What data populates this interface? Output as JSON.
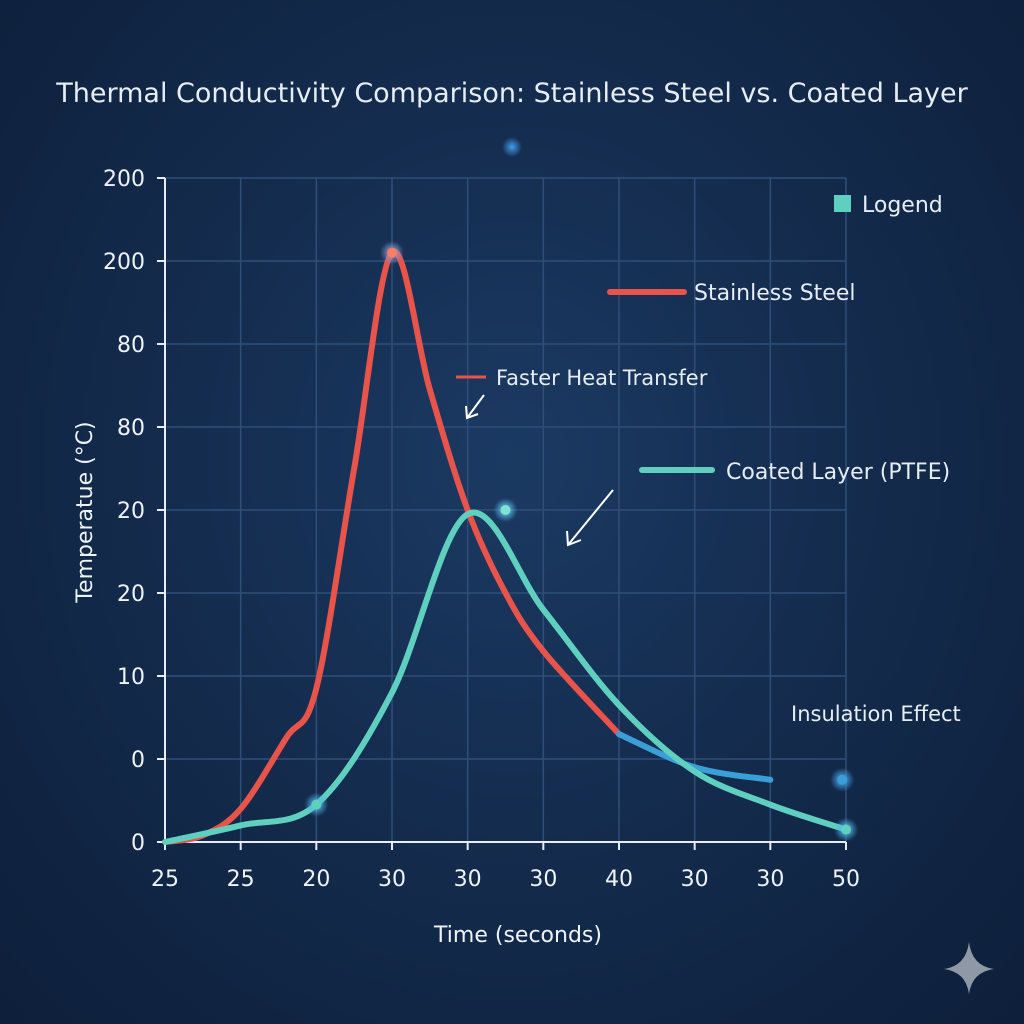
{
  "chart_data": {
    "type": "line",
    "title": "Thermal Conductivity Comparison: Stainless Steel vs. Coated Layer",
    "xlabel": "Time (seconds)",
    "ylabel": "Temperatue (°C)",
    "x_tick_labels": [
      "25",
      "25",
      "20",
      "30",
      "30",
      "30",
      "40",
      "30",
      "30",
      "50"
    ],
    "y_tick_labels": [
      "0",
      "0",
      "10",
      "20",
      "20",
      "80",
      "80",
      "200",
      "200"
    ],
    "grid": true,
    "legend": {
      "title": "Logend",
      "position": "top-right",
      "entries": [
        {
          "name": "Stainless Steel",
          "color": "#e8534a"
        },
        {
          "name": "Coated Layer (PTFE)",
          "color": "#5fd0bf"
        }
      ]
    },
    "annotations": [
      {
        "text": "Faster Heat Transfer",
        "target_series": "Stainless Steel"
      },
      {
        "text": "Insulation Effect",
        "target_series": "Coated Layer (PTFE)"
      }
    ],
    "series": [
      {
        "name": "Stainless Steel",
        "color": "#e8534a",
        "points": [
          [
            0,
            0.0
          ],
          [
            0.5,
            0.08
          ],
          [
            1,
            0.4
          ],
          [
            1.6,
            1.25
          ],
          [
            2,
            1.85
          ],
          [
            2.5,
            4.5
          ],
          [
            3,
            7.1
          ],
          [
            3.5,
            5.45
          ],
          [
            4,
            4.0
          ],
          [
            4.5,
            3.0
          ],
          [
            5,
            2.3
          ],
          [
            6,
            1.3
          ],
          [
            7,
            0.9
          ],
          [
            8,
            0.75
          ]
        ],
        "tail_color": "#3a9fd6"
      },
      {
        "name": "Coated Layer (PTFE)",
        "color": "#5fd0bf",
        "points": [
          [
            0,
            0.0
          ],
          [
            1,
            0.2
          ],
          [
            2,
            0.45
          ],
          [
            3,
            1.8
          ],
          [
            4,
            3.95
          ],
          [
            5,
            2.8
          ],
          [
            6,
            1.65
          ],
          [
            7,
            0.85
          ],
          [
            8,
            0.45
          ],
          [
            9,
            0.15
          ]
        ]
      }
    ]
  },
  "colors": {
    "background": "#142c4e",
    "grid": "#2f4f78",
    "axis": "#e6edf5",
    "steel": "#e8534a",
    "steel_tail": "#3a9fd6",
    "coated": "#5fd0bf",
    "marker_glow": "#4aa8ff"
  }
}
